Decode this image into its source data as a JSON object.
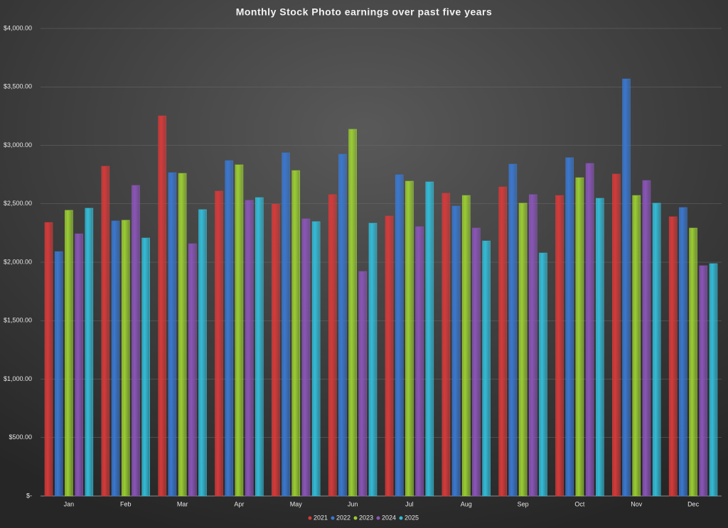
{
  "chart_data": {
    "type": "bar",
    "title": "Monthly Stock Photo earnings over past five years",
    "categories": [
      "Jan",
      "Feb",
      "Mar",
      "Apr",
      "May",
      "Jun",
      "Jul",
      "Aug",
      "Sep",
      "Oct",
      "Nov",
      "Dec"
    ],
    "series": [
      {
        "name": "2021",
        "color": "#d63a3a",
        "values": [
          2340,
          2821,
          3252,
          2608,
          2498,
          2578,
          2395,
          2590,
          2644,
          2571,
          2754,
          2389
        ]
      },
      {
        "name": "2022",
        "color": "#3a78d0",
        "values": [
          2091,
          2353,
          2766,
          2869,
          2936,
          2924,
          2748,
          2480,
          2839,
          2894,
          3568,
          2468
        ]
      },
      {
        "name": "2023",
        "color": "#9acd32",
        "values": [
          2444,
          2359,
          2760,
          2833,
          2784,
          3137,
          2693,
          2571,
          2505,
          2723,
          2571,
          2292
        ]
      },
      {
        "name": "2024",
        "color": "#8a55b8",
        "values": [
          2243,
          2657,
          2158,
          2529,
          2371,
          1921,
          2304,
          2292,
          2578,
          2845,
          2699,
          1970
        ]
      },
      {
        "name": "2025",
        "color": "#33bcd8",
        "values": [
          2462,
          2207,
          2450,
          2553,
          2347,
          2334,
          2687,
          2182,
          2079,
          2547,
          2505,
          1988
        ]
      }
    ],
    "ylim": [
      0,
      4000
    ],
    "yticks": [
      {
        "value": 0,
        "label": "$-"
      },
      {
        "value": 500,
        "label": "$500.00"
      },
      {
        "value": 1000,
        "label": "$1,000.00"
      },
      {
        "value": 1500,
        "label": "$1,500.00"
      },
      {
        "value": 2000,
        "label": "$2,000.00"
      },
      {
        "value": 2500,
        "label": "$2,500.00"
      },
      {
        "value": 3000,
        "label": "$3,000.00"
      },
      {
        "value": 3500,
        "label": "$3,500.00"
      },
      {
        "value": 4000,
        "label": "$4,000.00"
      }
    ],
    "grid": true,
    "legend": "bottom"
  }
}
